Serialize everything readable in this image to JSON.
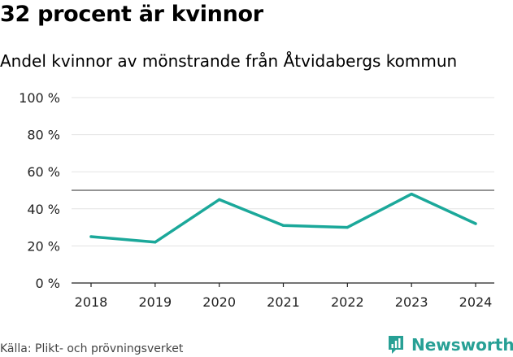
{
  "title": "32 procent är kvinnor",
  "subtitle": "Andel kvinnor av mönstrande från Åtvidabergs kommun",
  "source": "Källa: Plikt- och prövningsverket",
  "brand": {
    "name": "Newsworthy",
    "logo_icon": "newsworthy-chart-icon"
  },
  "colors": {
    "line": "#1ba89a",
    "brand": "#27a095",
    "grid": "#e3e3e3",
    "reference": "#555555",
    "axis": "#222222"
  },
  "chart_data": {
    "type": "line",
    "title": "32 procent är kvinnor",
    "subtitle": "Andel kvinnor av mönstrande från Åtvidabergs kommun",
    "xlabel": "",
    "ylabel": "",
    "categories": [
      "2018",
      "2019",
      "2020",
      "2021",
      "2022",
      "2023",
      "2024"
    ],
    "series": [
      {
        "name": "Andel kvinnor",
        "values": [
          25,
          22,
          45,
          31,
          30,
          48,
          32
        ]
      }
    ],
    "ylim": [
      0,
      100
    ],
    "yticks": [
      0,
      20,
      40,
      60,
      80,
      100
    ],
    "ytick_labels": [
      "0 %",
      "20 %",
      "40 %",
      "60 %",
      "80 %",
      "100 %"
    ],
    "reference_line": 50,
    "grid": true,
    "legend": "none"
  }
}
